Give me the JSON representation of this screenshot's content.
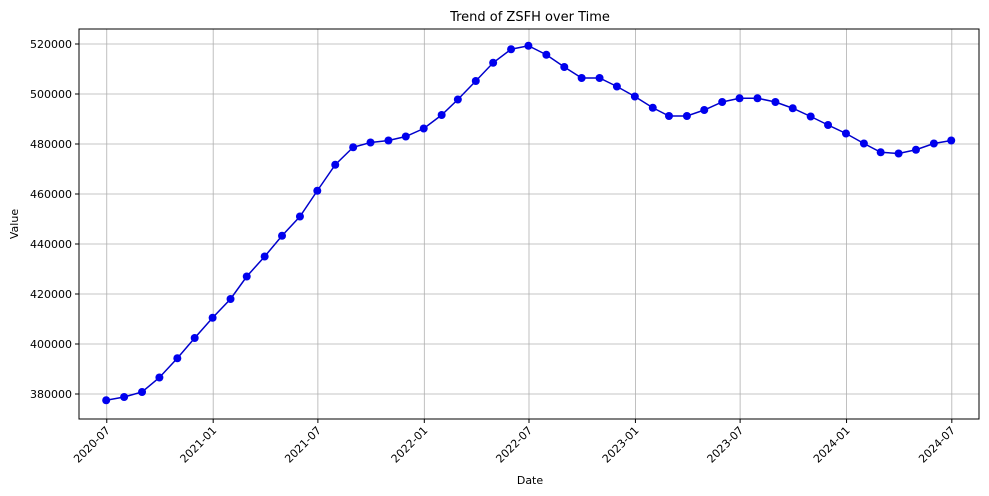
{
  "chart_data": {
    "type": "line",
    "title": "Trend of ZSFH over Time",
    "xlabel": "Date",
    "ylabel": "Value",
    "xlim": [
      "2020-05-14",
      "2024-08-17"
    ],
    "ylim": [
      370000,
      526000
    ],
    "grid": true,
    "x_ticks": [
      "2020-07",
      "2021-01",
      "2021-07",
      "2022-01",
      "2022-07",
      "2023-01",
      "2023-07",
      "2024-01",
      "2024-07"
    ],
    "y_ticks": [
      380000,
      400000,
      420000,
      440000,
      460000,
      480000,
      500000,
      520000
    ],
    "line_color": "#0000cc",
    "marker_color": "#0000ee",
    "series": [
      {
        "x": [
          "2020-06-30",
          "2020-07-31",
          "2020-08-31",
          "2020-09-30",
          "2020-10-31",
          "2020-11-30",
          "2020-12-31",
          "2021-01-31",
          "2021-02-28",
          "2021-03-31",
          "2021-04-30",
          "2021-05-31",
          "2021-06-30",
          "2021-07-31",
          "2021-08-31",
          "2021-09-30",
          "2021-10-31",
          "2021-11-30",
          "2021-12-31",
          "2022-01-31",
          "2022-02-28",
          "2022-03-31",
          "2022-04-30",
          "2022-05-31",
          "2022-06-30",
          "2022-07-31",
          "2022-08-31",
          "2022-09-30",
          "2022-10-31",
          "2022-11-30",
          "2022-12-31",
          "2023-01-31",
          "2023-02-28",
          "2023-03-31",
          "2023-04-30",
          "2023-05-31",
          "2023-06-30",
          "2023-07-31",
          "2023-08-31",
          "2023-09-30",
          "2023-10-31",
          "2023-11-30",
          "2023-12-31",
          "2024-01-31",
          "2024-02-29",
          "2024-03-31",
          "2024-04-30",
          "2024-05-31",
          "2024-06-30"
        ],
        "values": [
          377500,
          378800,
          380800,
          386600,
          394300,
          402400,
          410500,
          418000,
          427000,
          435000,
          443300,
          451000,
          461300,
          471700,
          478700,
          480600,
          481400,
          483000,
          486200,
          491600,
          497800,
          505200,
          512500,
          517900,
          519300,
          515700,
          510800,
          506400,
          506400,
          503000,
          499000,
          494500,
          491200,
          491200,
          493600,
          496800,
          498300,
          498300,
          496800,
          494300,
          491000,
          487600,
          484200,
          480200,
          476700,
          476200,
          477700,
          480200,
          481400
        ]
      }
    ]
  }
}
